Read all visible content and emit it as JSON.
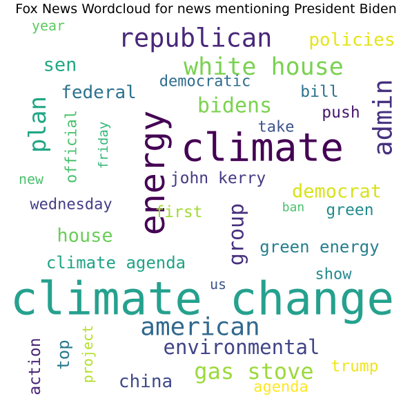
{
  "title": "Fox News Wordcloud for news mentioning President Biden",
  "words": [
    {
      "text": "climate change",
      "color": "#25a18e"
    },
    {
      "text": "climate",
      "color": "#440154"
    },
    {
      "text": "energy",
      "color": "#440154"
    },
    {
      "text": "republican",
      "color": "#482879"
    },
    {
      "text": "admin",
      "color": "#46317e"
    },
    {
      "text": "white house",
      "color": "#7ad151"
    },
    {
      "text": "american",
      "color": "#31688e"
    },
    {
      "text": "plan",
      "color": "#21a685"
    },
    {
      "text": "gas stove",
      "color": "#9bd93c"
    },
    {
      "text": "group",
      "color": "#46307e"
    },
    {
      "text": "bidens",
      "color": "#7cd250"
    },
    {
      "text": "environmental",
      "color": "#414487"
    },
    {
      "text": "climate agenda",
      "color": "#20a486"
    },
    {
      "text": "green energy",
      "color": "#277f8e"
    },
    {
      "text": "federal",
      "color": "#2c728e"
    },
    {
      "text": "democrat",
      "color": "#d8e219"
    },
    {
      "text": "china",
      "color": "#3e4a89"
    },
    {
      "text": "house",
      "color": "#6ccd5a"
    },
    {
      "text": "sen",
      "color": "#22a884"
    },
    {
      "text": "policies",
      "color": "#e5e419"
    },
    {
      "text": "john kerry",
      "color": "#443983"
    },
    {
      "text": "wednesday",
      "color": "#433e85"
    },
    {
      "text": "democratic",
      "color": "#2f6c8e"
    },
    {
      "text": "green",
      "color": "#228b8d"
    },
    {
      "text": "push",
      "color": "#48196b"
    },
    {
      "text": "take",
      "color": "#3b528b"
    },
    {
      "text": "bill",
      "color": "#2c738e"
    },
    {
      "text": "first",
      "color": "#a2da37"
    },
    {
      "text": "show",
      "color": "#23898e"
    },
    {
      "text": "trump",
      "color": "#f1e51d"
    },
    {
      "text": "official",
      "color": "#4ac16d"
    },
    {
      "text": "friday",
      "color": "#35b779"
    },
    {
      "text": "top",
      "color": "#2a788e"
    },
    {
      "text": "action",
      "color": "#482475"
    },
    {
      "text": "project",
      "color": "#b5de2b"
    },
    {
      "text": "agenda",
      "color": "#fde725"
    },
    {
      "text": "us",
      "color": "#3b528b"
    },
    {
      "text": "year",
      "color": "#5ec962"
    },
    {
      "text": "new",
      "color": "#4ac16d"
    },
    {
      "text": "ban",
      "color": "#4ac16d"
    }
  ]
}
